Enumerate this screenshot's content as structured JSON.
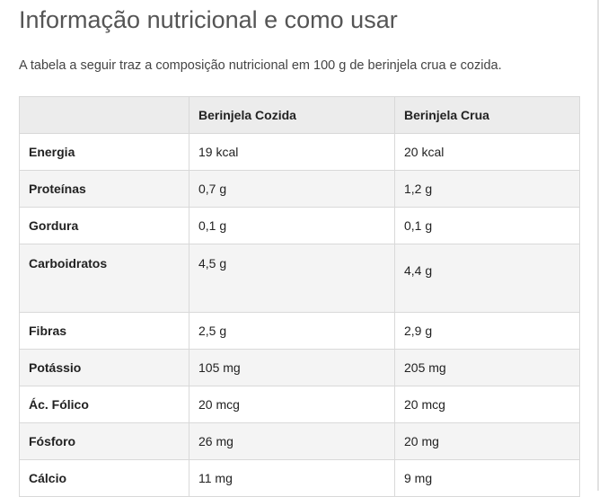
{
  "heading": "Informação nutricional e como usar",
  "intro": "A tabela a seguir traz a composição nutricional em 100 g de berinjela crua e cozida.",
  "table": {
    "headers": [
      "",
      "Berinjela Cozida",
      "Berinjela Crua"
    ],
    "rows": [
      {
        "label": "Energia",
        "cooked": "19 kcal",
        "raw": "20 kcal"
      },
      {
        "label": "Proteínas",
        "cooked": "0,7 g",
        "raw": "1,2 g"
      },
      {
        "label": "Gordura",
        "cooked": "0,1 g",
        "raw": "0,1 g"
      },
      {
        "label": "Carboidratos",
        "cooked": "4,5 g",
        "raw": "4,4 g"
      },
      {
        "label": "Fibras",
        "cooked": "2,5 g",
        "raw": "2,9 g"
      },
      {
        "label": "Potássio",
        "cooked": "105 mg",
        "raw": "205 mg"
      },
      {
        "label": "Ác. Fólico",
        "cooked": "20 mcg",
        "raw": "20 mcg"
      },
      {
        "label": "Fósforo",
        "cooked": "26 mg",
        "raw": "20 mg"
      },
      {
        "label": "Cálcio",
        "cooked": "11 mg",
        "raw": "9 mg"
      }
    ]
  },
  "colors": {
    "heading": "#555555",
    "header_bg": "#ececec",
    "stripe_bg": "#f4f4f4",
    "border": "#d9d9d9"
  }
}
